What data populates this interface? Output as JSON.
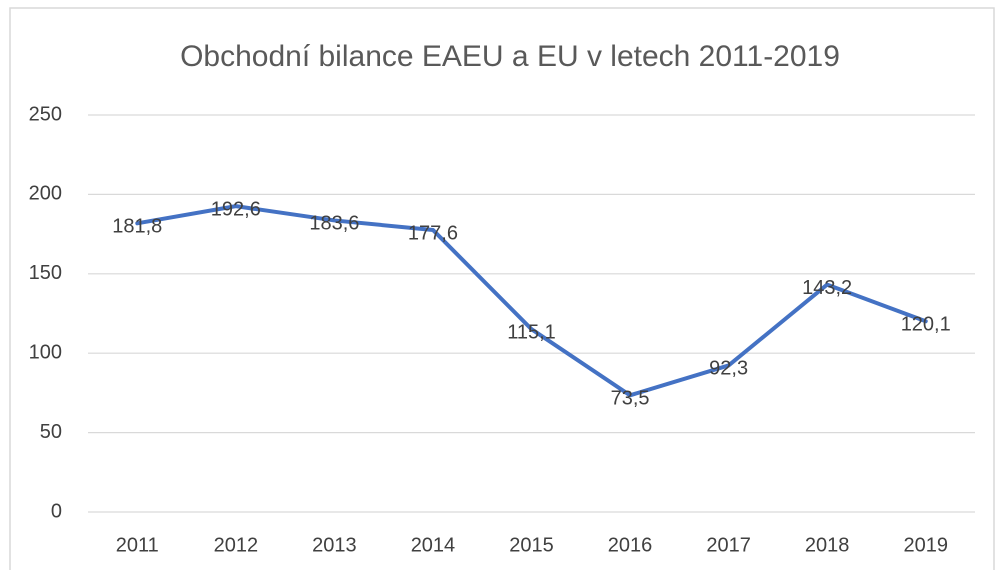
{
  "chart_data": {
    "type": "line",
    "title": "Obchodní bilance EAEU a EU v letech 2011-2019",
    "categories": [
      "2011",
      "2012",
      "2013",
      "2014",
      "2015",
      "2016",
      "2017",
      "2018",
      "2019"
    ],
    "series": [
      {
        "color": "#4472c4",
        "values": [
          181.8,
          192.6,
          183.6,
          177.6,
          115.1,
          73.5,
          92.3,
          143.2,
          120.1
        ],
        "value_labels": [
          "181,8",
          "192,6",
          "183,6",
          "177,6",
          "115,1",
          "73,5",
          "92,3",
          "143,2",
          "120,1"
        ]
      }
    ],
    "ylim": [
      0,
      250
    ],
    "yticks": [
      0,
      50,
      100,
      150,
      200,
      250
    ],
    "grid": true
  }
}
